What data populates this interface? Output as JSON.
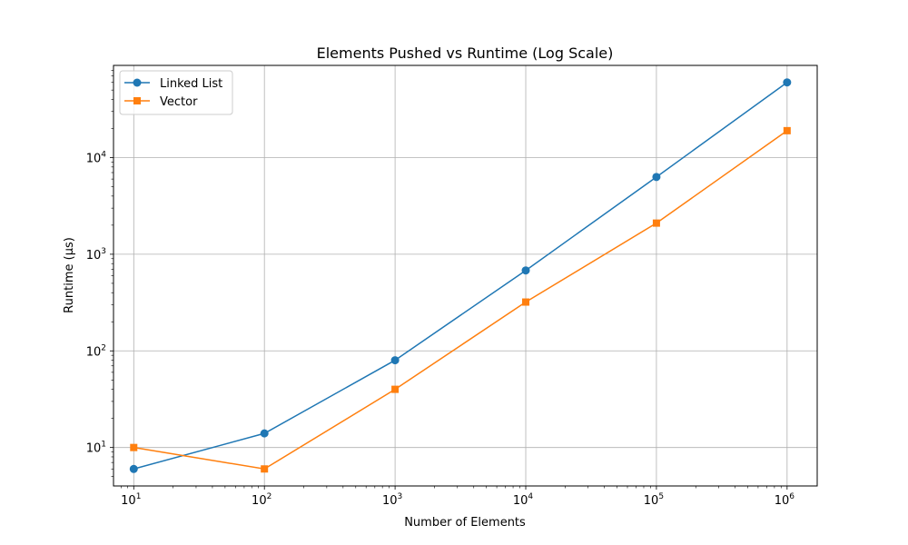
{
  "chart_data": {
    "type": "line",
    "title": "Elements Pushed vs Runtime (Log Scale)",
    "xlabel": "Number of Elements",
    "ylabel": "Runtime (µs)",
    "xscale": "log",
    "yscale": "log",
    "xlim": [
      7,
      1700000
    ],
    "ylim": [
      4,
      90000
    ],
    "grid": true,
    "legend_position": "top-left",
    "x": [
      10,
      100,
      1000,
      10000,
      100000,
      1000000
    ],
    "xticks": [
      {
        "value": 10,
        "base": "10",
        "exp": "1"
      },
      {
        "value": 100,
        "base": "10",
        "exp": "2"
      },
      {
        "value": 1000,
        "base": "10",
        "exp": "3"
      },
      {
        "value": 10000,
        "base": "10",
        "exp": "4"
      },
      {
        "value": 100000,
        "base": "10",
        "exp": "5"
      },
      {
        "value": 1000000,
        "base": "10",
        "exp": "6"
      }
    ],
    "yticks": [
      {
        "value": 10,
        "base": "10",
        "exp": "1"
      },
      {
        "value": 100,
        "base": "10",
        "exp": "2"
      },
      {
        "value": 1000,
        "base": "10",
        "exp": "3"
      },
      {
        "value": 10000,
        "base": "10",
        "exp": "4"
      }
    ],
    "series": [
      {
        "name": "Linked List",
        "color": "#1f77b4",
        "marker": "circle",
        "values": [
          6,
          14,
          80,
          680,
          6300,
          60000
        ]
      },
      {
        "name": "Vector",
        "color": "#ff7f0e",
        "marker": "square",
        "values": [
          10,
          6,
          40,
          320,
          2100,
          19000
        ]
      }
    ]
  }
}
